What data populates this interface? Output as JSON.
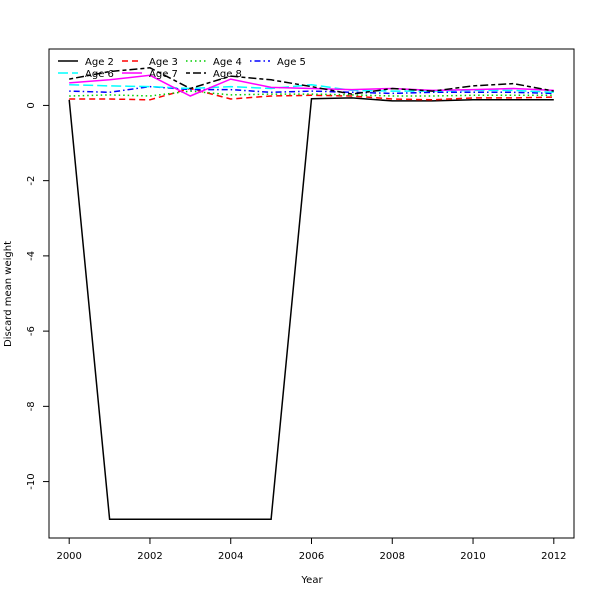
{
  "chart_data": {
    "type": "line",
    "title": "",
    "xlabel": "Year",
    "ylabel": "Discard mean weight",
    "xlim": [
      1999.5,
      2012.5
    ],
    "ylim": [
      -11.5,
      1.5
    ],
    "x": [
      2000,
      2001,
      2002,
      2003,
      2004,
      2005,
      2006,
      2007,
      2008,
      2009,
      2010,
      2011,
      2012
    ],
    "x_ticks": [
      "2000",
      "2002",
      "2004",
      "2006",
      "2008",
      "2010",
      "2012"
    ],
    "y_ticks": [
      "-10",
      "-8",
      "-6",
      "-4",
      "-2",
      "0"
    ],
    "grid": false,
    "legend_position": "top-left",
    "series": [
      {
        "name": "Age 2",
        "color": "#000000",
        "dash": "solid",
        "values": [
          0.15,
          -11.0,
          -11.0,
          -11.0,
          -11.0,
          -11.0,
          0.18,
          0.2,
          0.12,
          0.12,
          0.15,
          0.15,
          0.15
        ]
      },
      {
        "name": "Age 3",
        "color": "#ff0000",
        "dash": "dashed",
        "values": [
          0.17,
          0.17,
          0.15,
          0.45,
          0.17,
          0.25,
          0.27,
          0.25,
          0.17,
          0.15,
          0.2,
          0.2,
          0.22
        ]
      },
      {
        "name": "Age 4",
        "color": "#00cd00",
        "dash": "dotted",
        "values": [
          0.25,
          0.28,
          0.25,
          0.38,
          0.28,
          0.3,
          0.3,
          0.28,
          0.25,
          0.25,
          0.27,
          0.27,
          0.27
        ]
      },
      {
        "name": "Age 5",
        "color": "#0000ff",
        "dash": "dashdot",
        "values": [
          0.38,
          0.35,
          0.5,
          0.42,
          0.42,
          0.35,
          0.38,
          0.35,
          0.32,
          0.35,
          0.35,
          0.35,
          0.32
        ]
      },
      {
        "name": "Age 6",
        "color": "#00ffff",
        "dash": "longdash",
        "values": [
          0.55,
          0.52,
          0.5,
          0.45,
          0.5,
          0.45,
          0.55,
          0.4,
          0.38,
          0.38,
          0.4,
          0.4,
          0.35
        ]
      },
      {
        "name": "Age 7",
        "color": "#ff00ff",
        "dash": "solid",
        "values": [
          0.6,
          0.68,
          0.8,
          0.25,
          0.7,
          0.48,
          0.45,
          0.42,
          0.45,
          0.4,
          0.42,
          0.45,
          0.4
        ]
      },
      {
        "name": "Age 8",
        "color": "#000000",
        "dash": "twodash",
        "values": [
          0.7,
          0.9,
          1.0,
          0.45,
          0.78,
          0.68,
          0.5,
          0.3,
          0.45,
          0.38,
          0.52,
          0.58,
          0.38
        ]
      }
    ]
  }
}
